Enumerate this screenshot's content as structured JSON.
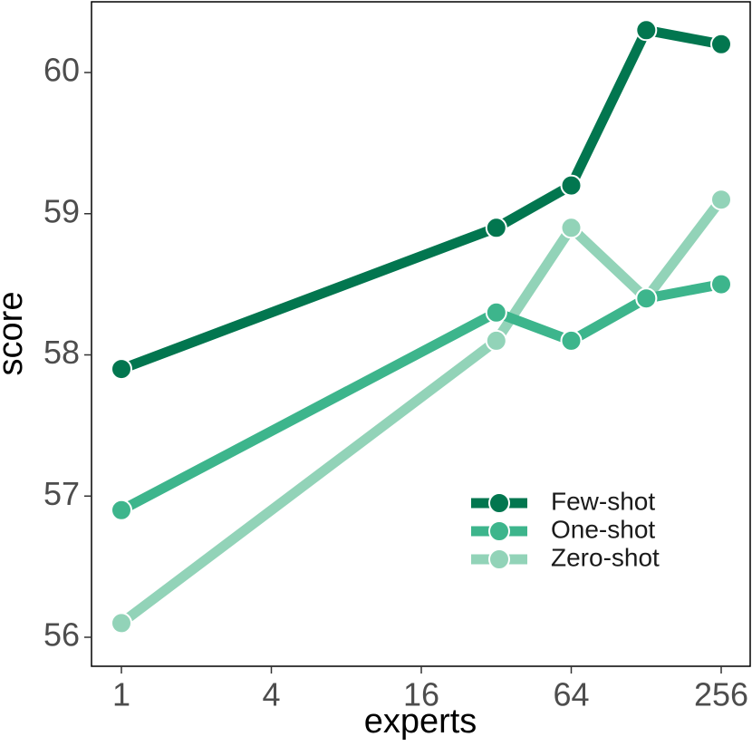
{
  "chart_data": {
    "type": "line",
    "title": "",
    "xlabel": "experts",
    "ylabel": "score",
    "x_scale": "log2",
    "x": [
      1,
      32,
      64,
      128,
      256
    ],
    "xticks": [
      1,
      4,
      16,
      64,
      256
    ],
    "xtick_labels": [
      "1",
      "4",
      "16",
      "64",
      "256"
    ],
    "xlim": [
      0.85,
      300
    ],
    "yticks": [
      56,
      57,
      58,
      59,
      60
    ],
    "ytick_labels": [
      "56",
      "57",
      "58",
      "59",
      "60"
    ],
    "ylim": [
      55.9,
      60.5
    ],
    "grid": false,
    "legend_position": "bottom-right",
    "series": [
      {
        "name": "Few-shot",
        "color": "#02764f",
        "values": [
          57.9,
          58.9,
          59.2,
          60.3,
          60.2
        ]
      },
      {
        "name": "One-shot",
        "color": "#3db58c",
        "values": [
          56.9,
          58.3,
          58.1,
          58.4,
          58.5
        ]
      },
      {
        "name": "Zero-shot",
        "color": "#92d3b8",
        "values": [
          56.1,
          58.1,
          58.9,
          58.4,
          59.1
        ]
      }
    ]
  }
}
